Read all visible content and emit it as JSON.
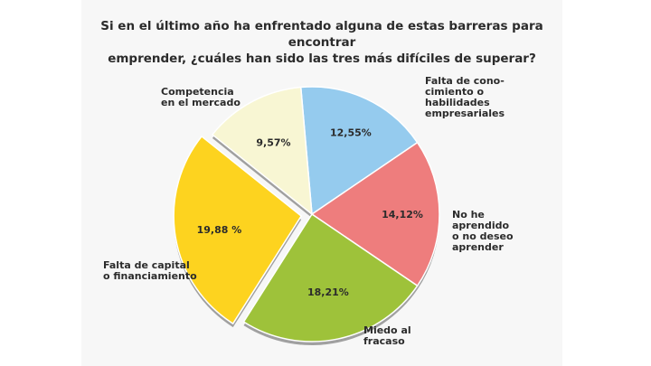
{
  "chart_data": {
    "type": "pie",
    "title_lines": [
      "Si en el último año ha enfrentado alguna de estas barreras para encontrar",
      "emprender, ¿cuáles han sido las tres más difíciles de superar?"
    ],
    "slices": [
      {
        "label_lines": [
          "Falta de cono-",
          "cimiento o",
          "habilidades",
          "empresariales"
        ],
        "value": 12.55,
        "value_label": "12,55%",
        "color": "#95cbee"
      },
      {
        "label_lines": [
          "No he",
          "aprendido",
          "o no deseo",
          "aprender"
        ],
        "value": 14.12,
        "value_label": "14,12%",
        "color": "#ee7d7d"
      },
      {
        "label_lines": [
          "Miedo al",
          "fracaso"
        ],
        "value": 18.21,
        "value_label": "18,21%",
        "color": "#9ec23a"
      },
      {
        "label_lines": [
          "Falta de capital",
          "o financiamiento"
        ],
        "value": 19.88,
        "value_label": "19,88 %",
        "color": "#fdd31f",
        "exploded": true
      },
      {
        "label_lines": [
          "Competencia",
          "en el mercado"
        ],
        "value": 9.57,
        "value_label": "9,57%",
        "color": "#f8f6d3"
      }
    ]
  }
}
